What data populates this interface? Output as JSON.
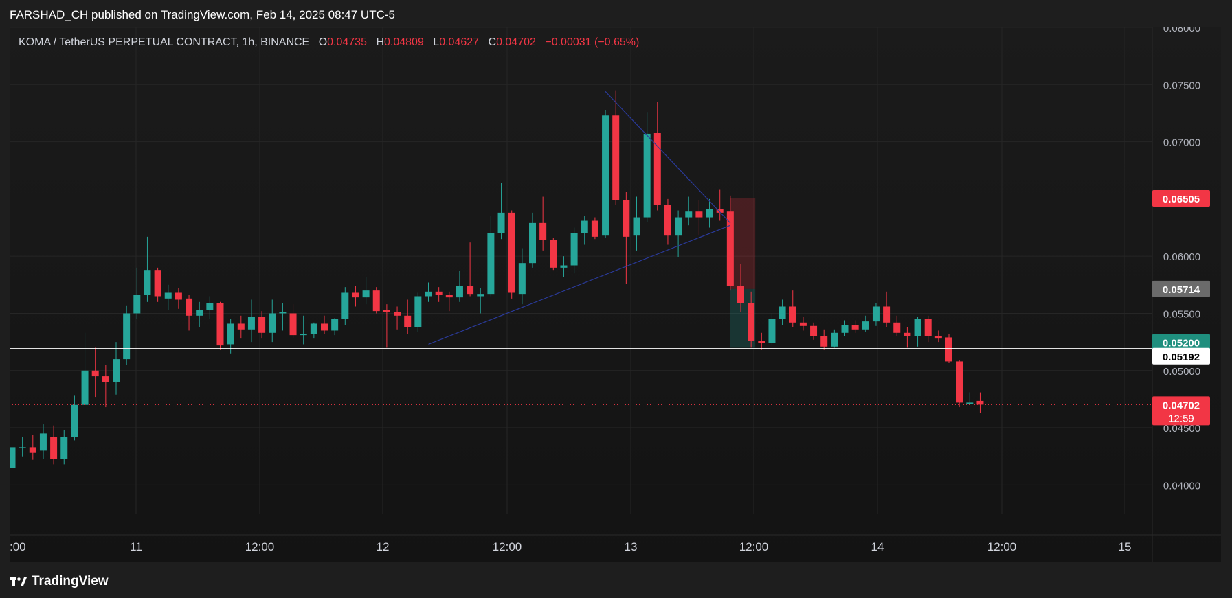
{
  "publisher": "FARSHAD_CH published on TradingView.com, Feb 14, 2025 08:47 UTC-5",
  "footer": {
    "brand": "TradingView",
    "logo_icon": "tradingview-logo-icon"
  },
  "legend": {
    "symbol": "KOMA / TetherUS PERPETUAL CONTRACT, 1h, BINANCE",
    "o_label": "O",
    "o": "0.04735",
    "h_label": "H",
    "h": "0.04809",
    "l_label": "L",
    "l": "0.04627",
    "c_label": "C",
    "c": "0.04702",
    "change": "−0.00031 (−0.65%)"
  },
  "colors": {
    "up": "#26a69a",
    "down": "#f23645",
    "background": "#131313",
    "panel": "#1e1e1e",
    "text": "#d1d4dc",
    "trendline": "#2a3a9a"
  },
  "chart_data": {
    "type": "candlestick",
    "ylim": [
      0.0375,
      0.08
    ],
    "y_ticks": [
      "0.04000",
      "0.04500",
      "0.05000",
      "0.05500",
      "0.06000",
      "0.07000",
      "0.07500",
      "0.08000"
    ],
    "x_ticks": [
      ":00",
      "11",
      "12:00",
      "12",
      "12:00",
      "13",
      "12:00",
      "14",
      "12:00",
      "15"
    ],
    "grid": true,
    "candles": [
      {
        "o": 0.0415,
        "h": 0.0433,
        "l": 0.0402,
        "c": 0.0433
      },
      {
        "o": 0.0433,
        "h": 0.0442,
        "l": 0.0425,
        "c": 0.0433
      },
      {
        "o": 0.0433,
        "h": 0.0444,
        "l": 0.0422,
        "c": 0.0428
      },
      {
        "o": 0.043,
        "h": 0.0453,
        "l": 0.0423,
        "c": 0.0445
      },
      {
        "o": 0.0442,
        "h": 0.0452,
        "l": 0.0418,
        "c": 0.0423
      },
      {
        "o": 0.0423,
        "h": 0.0448,
        "l": 0.0418,
        "c": 0.0442
      },
      {
        "o": 0.0442,
        "h": 0.0478,
        "l": 0.0439,
        "c": 0.047
      },
      {
        "o": 0.047,
        "h": 0.0533,
        "l": 0.047,
        "c": 0.05
      },
      {
        "o": 0.05,
        "h": 0.052,
        "l": 0.0477,
        "c": 0.0495
      },
      {
        "o": 0.0495,
        "h": 0.0505,
        "l": 0.0468,
        "c": 0.049
      },
      {
        "o": 0.049,
        "h": 0.0525,
        "l": 0.0479,
        "c": 0.051
      },
      {
        "o": 0.051,
        "h": 0.0557,
        "l": 0.0505,
        "c": 0.055
      },
      {
        "o": 0.055,
        "h": 0.059,
        "l": 0.0545,
        "c": 0.0566
      },
      {
        "o": 0.0566,
        "h": 0.0617,
        "l": 0.056,
        "c": 0.0588
      },
      {
        "o": 0.0588,
        "h": 0.059,
        "l": 0.056,
        "c": 0.0565
      },
      {
        "o": 0.0563,
        "h": 0.0575,
        "l": 0.0553,
        "c": 0.0568
      },
      {
        "o": 0.0568,
        "h": 0.0572,
        "l": 0.0554,
        "c": 0.0562
      },
      {
        "o": 0.0563,
        "h": 0.0566,
        "l": 0.0535,
        "c": 0.0548
      },
      {
        "o": 0.0548,
        "h": 0.056,
        "l": 0.0538,
        "c": 0.0553
      },
      {
        "o": 0.0553,
        "h": 0.0565,
        "l": 0.0545,
        "c": 0.0559
      },
      {
        "o": 0.0559,
        "h": 0.056,
        "l": 0.0518,
        "c": 0.0522
      },
      {
        "o": 0.0523,
        "h": 0.0545,
        "l": 0.0515,
        "c": 0.0541
      },
      {
        "o": 0.0541,
        "h": 0.0548,
        "l": 0.0528,
        "c": 0.0536
      },
      {
        "o": 0.0536,
        "h": 0.0562,
        "l": 0.0525,
        "c": 0.0547
      },
      {
        "o": 0.0547,
        "h": 0.0552,
        "l": 0.0528,
        "c": 0.0533
      },
      {
        "o": 0.0533,
        "h": 0.0562,
        "l": 0.0525,
        "c": 0.055
      },
      {
        "o": 0.055,
        "h": 0.0559,
        "l": 0.0535,
        "c": 0.0551
      },
      {
        "o": 0.055,
        "h": 0.0558,
        "l": 0.0528,
        "c": 0.0531
      },
      {
        "o": 0.0531,
        "h": 0.0548,
        "l": 0.0523,
        "c": 0.0532
      },
      {
        "o": 0.0532,
        "h": 0.0542,
        "l": 0.0528,
        "c": 0.0541
      },
      {
        "o": 0.0541,
        "h": 0.0548,
        "l": 0.0532,
        "c": 0.0535
      },
      {
        "o": 0.0535,
        "h": 0.0546,
        "l": 0.0531,
        "c": 0.0545
      },
      {
        "o": 0.0545,
        "h": 0.0573,
        "l": 0.054,
        "c": 0.0568
      },
      {
        "o": 0.0568,
        "h": 0.0574,
        "l": 0.0556,
        "c": 0.0564
      },
      {
        "o": 0.0564,
        "h": 0.0582,
        "l": 0.0558,
        "c": 0.057
      },
      {
        "o": 0.057,
        "h": 0.0573,
        "l": 0.055,
        "c": 0.0552
      },
      {
        "o": 0.0553,
        "h": 0.0558,
        "l": 0.052,
        "c": 0.0551
      },
      {
        "o": 0.0551,
        "h": 0.0556,
        "l": 0.0536,
        "c": 0.0548
      },
      {
        "o": 0.0548,
        "h": 0.0562,
        "l": 0.0532,
        "c": 0.0538
      },
      {
        "o": 0.0538,
        "h": 0.0568,
        "l": 0.0534,
        "c": 0.0565
      },
      {
        "o": 0.0565,
        "h": 0.0577,
        "l": 0.056,
        "c": 0.0569
      },
      {
        "o": 0.0569,
        "h": 0.0573,
        "l": 0.056,
        "c": 0.0566
      },
      {
        "o": 0.0566,
        "h": 0.0569,
        "l": 0.0552,
        "c": 0.0564
      },
      {
        "o": 0.0564,
        "h": 0.0587,
        "l": 0.056,
        "c": 0.0574
      },
      {
        "o": 0.0574,
        "h": 0.0612,
        "l": 0.0565,
        "c": 0.0567
      },
      {
        "o": 0.0565,
        "h": 0.0572,
        "l": 0.055,
        "c": 0.0567
      },
      {
        "o": 0.0567,
        "h": 0.0635,
        "l": 0.0565,
        "c": 0.062
      },
      {
        "o": 0.062,
        "h": 0.0664,
        "l": 0.0615,
        "c": 0.0638
      },
      {
        "o": 0.0638,
        "h": 0.064,
        "l": 0.0563,
        "c": 0.0568
      },
      {
        "o": 0.0567,
        "h": 0.0607,
        "l": 0.0558,
        "c": 0.0594
      },
      {
        "o": 0.0594,
        "h": 0.0638,
        "l": 0.059,
        "c": 0.0629
      },
      {
        "o": 0.0629,
        "h": 0.0652,
        "l": 0.0605,
        "c": 0.0614
      },
      {
        "o": 0.0614,
        "h": 0.0616,
        "l": 0.0588,
        "c": 0.059
      },
      {
        "o": 0.059,
        "h": 0.06,
        "l": 0.0582,
        "c": 0.0592
      },
      {
        "o": 0.0592,
        "h": 0.0625,
        "l": 0.0585,
        "c": 0.062
      },
      {
        "o": 0.062,
        "h": 0.0635,
        "l": 0.061,
        "c": 0.0631
      },
      {
        "o": 0.0631,
        "h": 0.0634,
        "l": 0.0615,
        "c": 0.0617
      },
      {
        "o": 0.0618,
        "h": 0.0728,
        "l": 0.0616,
        "c": 0.0723
      },
      {
        "o": 0.0723,
        "h": 0.0745,
        "l": 0.0645,
        "c": 0.0649
      },
      {
        "o": 0.0649,
        "h": 0.0656,
        "l": 0.0576,
        "c": 0.0617
      },
      {
        "o": 0.0618,
        "h": 0.0652,
        "l": 0.0605,
        "c": 0.0634
      },
      {
        "o": 0.0634,
        "h": 0.0726,
        "l": 0.063,
        "c": 0.0707
      },
      {
        "o": 0.0708,
        "h": 0.0735,
        "l": 0.064,
        "c": 0.0645
      },
      {
        "o": 0.0645,
        "h": 0.065,
        "l": 0.061,
        "c": 0.0618
      },
      {
        "o": 0.0618,
        "h": 0.064,
        "l": 0.0599,
        "c": 0.0634
      },
      {
        "o": 0.0634,
        "h": 0.0652,
        "l": 0.0627,
        "c": 0.0639
      },
      {
        "o": 0.0639,
        "h": 0.0649,
        "l": 0.0618,
        "c": 0.0634
      },
      {
        "o": 0.0634,
        "h": 0.065,
        "l": 0.0625,
        "c": 0.0641
      },
      {
        "o": 0.0641,
        "h": 0.0658,
        "l": 0.0631,
        "c": 0.0638
      },
      {
        "o": 0.0639,
        "h": 0.0653,
        "l": 0.057,
        "c": 0.0574
      },
      {
        "o": 0.0574,
        "h": 0.0593,
        "l": 0.0551,
        "c": 0.0559
      },
      {
        "o": 0.0559,
        "h": 0.0569,
        "l": 0.052,
        "c": 0.0526
      },
      {
        "o": 0.0526,
        "h": 0.0533,
        "l": 0.0518,
        "c": 0.0524
      },
      {
        "o": 0.0524,
        "h": 0.055,
        "l": 0.0522,
        "c": 0.0545
      },
      {
        "o": 0.0545,
        "h": 0.0562,
        "l": 0.054,
        "c": 0.0556
      },
      {
        "o": 0.0556,
        "h": 0.057,
        "l": 0.0538,
        "c": 0.0542
      },
      {
        "o": 0.0542,
        "h": 0.0547,
        "l": 0.0535,
        "c": 0.0539
      },
      {
        "o": 0.0539,
        "h": 0.0542,
        "l": 0.0527,
        "c": 0.053
      },
      {
        "o": 0.053,
        "h": 0.0536,
        "l": 0.0518,
        "c": 0.0521
      },
      {
        "o": 0.0521,
        "h": 0.0536,
        "l": 0.052,
        "c": 0.0533
      },
      {
        "o": 0.0533,
        "h": 0.0544,
        "l": 0.053,
        "c": 0.054
      },
      {
        "o": 0.054,
        "h": 0.0544,
        "l": 0.0533,
        "c": 0.0536
      },
      {
        "o": 0.0536,
        "h": 0.0548,
        "l": 0.0534,
        "c": 0.0543
      },
      {
        "o": 0.0543,
        "h": 0.0559,
        "l": 0.0539,
        "c": 0.0556
      },
      {
        "o": 0.0556,
        "h": 0.0569,
        "l": 0.0538,
        "c": 0.0542
      },
      {
        "o": 0.0542,
        "h": 0.0548,
        "l": 0.053,
        "c": 0.0533
      },
      {
        "o": 0.0533,
        "h": 0.0538,
        "l": 0.052,
        "c": 0.053
      },
      {
        "o": 0.053,
        "h": 0.0547,
        "l": 0.0521,
        "c": 0.0545
      },
      {
        "o": 0.0545,
        "h": 0.0548,
        "l": 0.0525,
        "c": 0.053
      },
      {
        "o": 0.053,
        "h": 0.0535,
        "l": 0.0525,
        "c": 0.0528
      },
      {
        "o": 0.0529,
        "h": 0.0532,
        "l": 0.0507,
        "c": 0.0508
      },
      {
        "o": 0.0508,
        "h": 0.0509,
        "l": 0.0468,
        "c": 0.0472
      },
      {
        "o": 0.0471,
        "h": 0.0481,
        "l": 0.047,
        "c": 0.0472
      },
      {
        "o": 0.04735,
        "h": 0.04809,
        "l": 0.04627,
        "c": 0.04702
      }
    ],
    "price_labels": [
      {
        "value": 0.06505,
        "text": "0.06505",
        "color": "#f23645"
      },
      {
        "value": 0.05714,
        "text": "0.05714",
        "color": "#6b6b6b"
      },
      {
        "value": 0.052,
        "text": "0.05200",
        "color": "#1f8f7e"
      },
      {
        "value": 0.05192,
        "text": "0.05192",
        "color": "#ffffff"
      },
      {
        "value": 0.04702,
        "text": "0.04702",
        "color": "#f23645",
        "countdown": "12:59"
      }
    ],
    "horizontal_line": 0.05192,
    "last_price": 0.04702,
    "trendlines": [
      {
        "from": {
          "i": 40,
          "v": 0.0523
        },
        "to": {
          "i": 69,
          "v": 0.0627
        }
      },
      {
        "from": {
          "i": 57,
          "v": 0.0744
        },
        "to": {
          "i": 69,
          "v": 0.0629
        }
      }
    ],
    "position": {
      "entry": 0.05714,
      "stop": 0.06505,
      "target": 0.052,
      "from_i": 69.4,
      "to_i": 71
    }
  }
}
